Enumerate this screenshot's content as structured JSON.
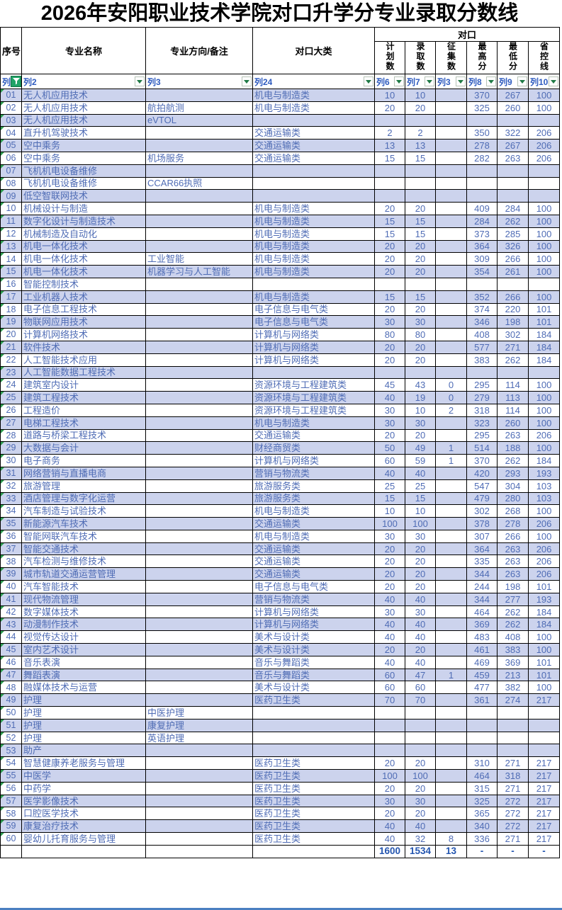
{
  "title": "2026年安阳职业技术学院对口升学分专业录取分数线",
  "header": {
    "seq": "序号",
    "major": "专业名称",
    "direction": "专业方向/备注",
    "category": "对口大类",
    "group": "对口",
    "plan": "计划数",
    "admitted": "录取数",
    "supplement": "征集数",
    "max": "最高分",
    "min": "最低分",
    "control": "省控线"
  },
  "filters": [
    "列",
    "列2",
    "列3",
    "列24",
    "列6",
    "列7",
    "列3",
    "列8",
    "列9",
    "列10"
  ],
  "table": {
    "rows": [
      [
        "01",
        "无人机应用技术",
        "",
        "机电与制造类",
        "10",
        "10",
        "",
        "370",
        "267",
        "100"
      ],
      [
        "02",
        "无人机应用技术",
        "航拍航测",
        "机电与制造类",
        "20",
        "20",
        "",
        "325",
        "260",
        "100"
      ],
      [
        "03",
        "无人机应用技术",
        "eVTOL",
        "",
        "",
        "",
        "",
        "",
        "",
        ""
      ],
      [
        "04",
        "直升机驾驶技术",
        "",
        "交通运输类",
        "2",
        "2",
        "",
        "350",
        "322",
        "206"
      ],
      [
        "05",
        "空中乘务",
        "",
        "交通运输类",
        "13",
        "13",
        "",
        "278",
        "267",
        "206"
      ],
      [
        "06",
        "空中乘务",
        "机场服务",
        "交通运输类",
        "15",
        "15",
        "",
        "282",
        "263",
        "206"
      ],
      [
        "07",
        "飞机机电设备维修",
        "",
        "",
        "",
        "",
        "",
        "",
        "",
        ""
      ],
      [
        "08",
        "飞机机电设备维修",
        "CCAR66执照",
        "",
        "",
        "",
        "",
        "",
        "",
        ""
      ],
      [
        "09",
        "低空智联网技术",
        "",
        "",
        "",
        "",
        "",
        "",
        "",
        ""
      ],
      [
        "10",
        "机械设计与制造",
        "",
        "机电与制造类",
        "20",
        "20",
        "",
        "409",
        "284",
        "100"
      ],
      [
        "11",
        "数字化设计与制造技术",
        "",
        "机电与制造类",
        "15",
        "15",
        "",
        "284",
        "262",
        "100"
      ],
      [
        "12",
        "机械制造及自动化",
        "",
        "机电与制造类",
        "15",
        "15",
        "",
        "373",
        "285",
        "100"
      ],
      [
        "13",
        "机电一体化技术",
        "",
        "机电与制造类",
        "20",
        "20",
        "",
        "364",
        "326",
        "100"
      ],
      [
        "14",
        "机电一体化技术",
        "工业智能",
        "机电与制造类",
        "20",
        "20",
        "",
        "309",
        "266",
        "100"
      ],
      [
        "15",
        "机电一体化技术",
        "机器学习与人工智能",
        "机电与制造类",
        "20",
        "20",
        "",
        "354",
        "261",
        "100"
      ],
      [
        "16",
        "智能控制技术",
        "",
        "",
        "",
        "",
        "",
        "",
        "",
        ""
      ],
      [
        "17",
        "工业机器人技术",
        "",
        "机电与制造类",
        "15",
        "15",
        "",
        "352",
        "266",
        "100"
      ],
      [
        "18",
        "电子信息工程技术",
        "",
        "电子信息与电气类",
        "20",
        "20",
        "",
        "374",
        "220",
        "101"
      ],
      [
        "19",
        "物联网应用技术",
        "",
        "电子信息与电气类",
        "30",
        "30",
        "",
        "346",
        "198",
        "101"
      ],
      [
        "20",
        "计算机网络技术",
        "",
        "计算机与网络类",
        "80",
        "80",
        "",
        "408",
        "302",
        "184"
      ],
      [
        "21",
        "软件技术",
        "",
        "计算机与网络类",
        "20",
        "20",
        "",
        "577",
        "271",
        "184"
      ],
      [
        "22",
        "人工智能技术应用",
        "",
        "计算机与网络类",
        "20",
        "20",
        "",
        "383",
        "262",
        "184"
      ],
      [
        "23",
        "人工智能数据工程技术",
        "",
        "",
        "",
        "",
        "",
        "",
        "",
        ""
      ],
      [
        "24",
        "建筑室内设计",
        "",
        "资源环境与工程建筑类",
        "45",
        "43",
        "0",
        "295",
        "114",
        "100"
      ],
      [
        "25",
        "建筑工程技术",
        "",
        "资源环境与工程建筑类",
        "40",
        "19",
        "0",
        "279",
        "113",
        "100"
      ],
      [
        "26",
        "工程造价",
        "",
        "资源环境与工程建筑类",
        "30",
        "10",
        "2",
        "318",
        "114",
        "100"
      ],
      [
        "27",
        "电梯工程技术",
        "",
        "机电与制造类",
        "30",
        "30",
        "",
        "323",
        "260",
        "100"
      ],
      [
        "28",
        "道路与桥梁工程技术",
        "",
        "交通运输类",
        "20",
        "20",
        "",
        "295",
        "263",
        "206"
      ],
      [
        "29",
        "大数据与会计",
        "",
        "财经商贸类",
        "50",
        "49",
        "1",
        "514",
        "188",
        "100"
      ],
      [
        "30",
        "电子商务",
        "",
        "计算机与网络类",
        "60",
        "59",
        "1",
        "370",
        "262",
        "184"
      ],
      [
        "31",
        "网络营销与直播电商",
        "",
        "营销与物流类",
        "40",
        "40",
        "",
        "420",
        "293",
        "193"
      ],
      [
        "32",
        "旅游管理",
        "",
        "旅游服务类",
        "25",
        "25",
        "",
        "547",
        "304",
        "103"
      ],
      [
        "33",
        "酒店管理与数字化运营",
        "",
        "旅游服务类",
        "15",
        "15",
        "",
        "479",
        "280",
        "103"
      ],
      [
        "34",
        "汽车制造与试验技术",
        "",
        "机电与制造类",
        "10",
        "10",
        "",
        "302",
        "268",
        "100"
      ],
      [
        "35",
        "新能源汽车技术",
        "",
        "交通运输类",
        "100",
        "100",
        "",
        "378",
        "278",
        "206"
      ],
      [
        "36",
        "智能网联汽车技术",
        "",
        "机电与制造类",
        "30",
        "30",
        "",
        "307",
        "266",
        "100"
      ],
      [
        "37",
        "智能交通技术",
        "",
        "交通运输类",
        "20",
        "20",
        "",
        "364",
        "263",
        "206"
      ],
      [
        "38",
        "汽车检测与维修技术",
        "",
        "交通运输类",
        "20",
        "20",
        "",
        "335",
        "263",
        "206"
      ],
      [
        "39",
        "城市轨道交通运营管理",
        "",
        "交通运输类",
        "20",
        "20",
        "",
        "344",
        "263",
        "206"
      ],
      [
        "40",
        "汽车智能技术",
        "",
        "电子信息与电气类",
        "20",
        "20",
        "",
        "244",
        "198",
        "101"
      ],
      [
        "41",
        "现代物流管理",
        "",
        "营销与物流类",
        "40",
        "40",
        "",
        "344",
        "277",
        "193"
      ],
      [
        "42",
        "数字媒体技术",
        "",
        "计算机与网络类",
        "30",
        "30",
        "",
        "464",
        "262",
        "184"
      ],
      [
        "43",
        "动漫制作技术",
        "",
        "计算机与网络类",
        "40",
        "40",
        "",
        "369",
        "262",
        "184"
      ],
      [
        "44",
        "视觉传达设计",
        "",
        "美术与设计类",
        "40",
        "40",
        "",
        "483",
        "408",
        "100"
      ],
      [
        "45",
        "室内艺术设计",
        "",
        "美术与设计类",
        "20",
        "20",
        "",
        "461",
        "383",
        "100"
      ],
      [
        "46",
        "音乐表演",
        "",
        "音乐与舞蹈类",
        "40",
        "40",
        "",
        "469",
        "369",
        "101"
      ],
      [
        "47",
        "舞蹈表演",
        "",
        "音乐与舞蹈类",
        "60",
        "47",
        "1",
        "459",
        "213",
        "101"
      ],
      [
        "48",
        "融媒体技术与运营",
        "",
        "美术与设计类",
        "60",
        "60",
        "",
        "477",
        "382",
        "100"
      ],
      [
        "49",
        "护理",
        "",
        "医药卫生类",
        "70",
        "70",
        "",
        "361",
        "274",
        "217"
      ],
      [
        "50",
        "护理",
        "中医护理",
        "",
        "",
        "",
        "",
        "",
        "",
        ""
      ],
      [
        "51",
        "护理",
        "康复护理",
        "",
        "",
        "",
        "",
        "",
        "",
        ""
      ],
      [
        "52",
        "护理",
        "英语护理",
        "",
        "",
        "",
        "",
        "",
        "",
        ""
      ],
      [
        "53",
        "助产",
        "",
        "",
        "",
        "",
        "",
        "",
        "",
        ""
      ],
      [
        "54",
        "智慧健康养老服务与管理",
        "",
        "医药卫生类",
        "20",
        "20",
        "",
        "310",
        "271",
        "217"
      ],
      [
        "55",
        "中医学",
        "",
        "医药卫生类",
        "100",
        "100",
        "",
        "464",
        "318",
        "217"
      ],
      [
        "56",
        "中药学",
        "",
        "医药卫生类",
        "20",
        "20",
        "",
        "315",
        "271",
        "217"
      ],
      [
        "57",
        "医学影像技术",
        "",
        "医药卫生类",
        "30",
        "30",
        "",
        "325",
        "272",
        "217"
      ],
      [
        "58",
        "口腔医学技术",
        "",
        "医药卫生类",
        "20",
        "20",
        "",
        "365",
        "272",
        "217"
      ],
      [
        "59",
        "康复治疗技术",
        "",
        "医药卫生类",
        "40",
        "40",
        "",
        "340",
        "272",
        "217"
      ],
      [
        "60",
        "婴幼儿托育服务与管理",
        "",
        "医药卫生类",
        "40",
        "32",
        "8",
        "336",
        "271",
        "217"
      ]
    ],
    "total": [
      "",
      "",
      "",
      "",
      "1600",
      "1534",
      "13",
      "-",
      "-",
      "-"
    ]
  },
  "colors": {
    "row_shade": "#ccd3ed",
    "data_text": "#4f6cb5",
    "filter_green": "#21a366",
    "total_text": "#2456b0",
    "bottom_line": "#4a7fc1"
  }
}
